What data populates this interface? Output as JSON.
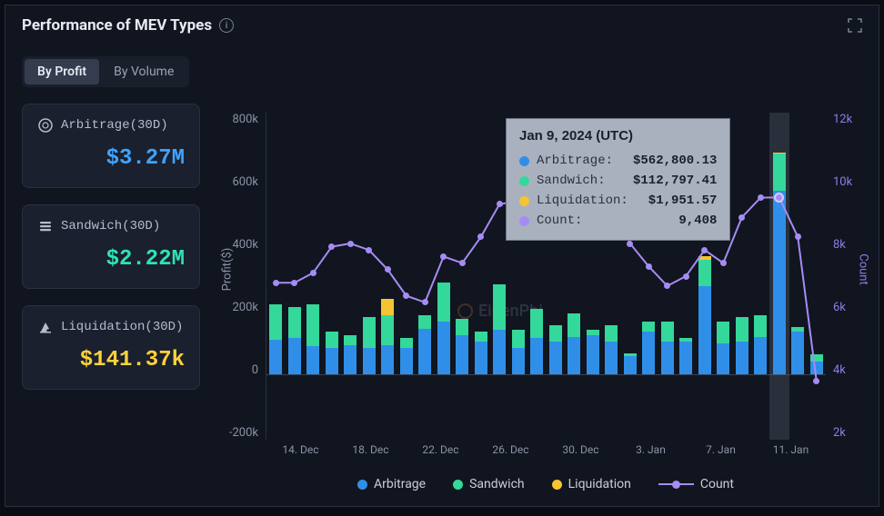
{
  "title": "Performance of MEV Types",
  "tabs": {
    "profit": "By Profit",
    "volume": "By Volume",
    "active": "profit"
  },
  "cards": [
    {
      "icon": "arbitrage",
      "label": "Arbitrage(30D)",
      "value": "$3.27M",
      "value_color": "#3fa3ff"
    },
    {
      "icon": "sandwich",
      "label": "Sandwich(30D)",
      "value": "$2.22M",
      "value_color": "#2fe3b0"
    },
    {
      "icon": "liquidation",
      "label": "Liquidation(30D)",
      "value": "$141.37k",
      "value_color": "#ffd23a"
    }
  ],
  "colors": {
    "arbitrage": "#2f8fe8",
    "sandwich": "#34d89a",
    "liquidation": "#f5c531",
    "count": "#a58cf5",
    "grid": "#2a3040",
    "bg": "#11151f",
    "text_muted": "#8a93a6"
  },
  "chart": {
    "y_left_label": "Profit($)",
    "y_right_label": "Count",
    "y_left": {
      "min": -200,
      "max": 800,
      "step": 200,
      "ticks": [
        "800k",
        "600k",
        "400k",
        "200k",
        "0",
        "-200k"
      ]
    },
    "y_right": {
      "min": 2,
      "max": 12,
      "step": 2,
      "ticks": [
        "12k",
        "10k",
        "8k",
        "6k",
        "4k",
        "2k"
      ]
    },
    "x_ticks": [
      "14. Dec",
      "18. Dec",
      "22. Dec",
      "26. Dec",
      "30. Dec",
      "3. Jan",
      "7. Jan",
      "11. Jan"
    ],
    "series": [
      {
        "arb": 105,
        "sand": 110,
        "liq": 0,
        "count": 6800
      },
      {
        "arb": 110,
        "sand": 95,
        "liq": 0,
        "count": 6800
      },
      {
        "arb": 85,
        "sand": 130,
        "liq": 0,
        "count": 7100
      },
      {
        "arb": 80,
        "sand": 50,
        "liq": 0,
        "count": 7900
      },
      {
        "arb": 90,
        "sand": 30,
        "liq": 0,
        "count": 8000
      },
      {
        "arb": 80,
        "sand": 95,
        "liq": 0,
        "count": 7800
      },
      {
        "arb": 90,
        "sand": 90,
        "liq": 50,
        "count": 7200
      },
      {
        "arb": 80,
        "sand": 30,
        "liq": 0,
        "count": 6400
      },
      {
        "arb": 140,
        "sand": 40,
        "liq": 0,
        "count": 6200
      },
      {
        "arb": 160,
        "sand": 120,
        "liq": 0,
        "count": 7600
      },
      {
        "arb": 120,
        "sand": 50,
        "liq": 0,
        "count": 7400
      },
      {
        "arb": 100,
        "sand": 30,
        "liq": 0,
        "count": 8200
      },
      {
        "arb": 135,
        "sand": 140,
        "liq": 0,
        "count": 9200
      },
      {
        "arb": 80,
        "sand": 55,
        "liq": 0,
        "count": 9300
      },
      {
        "arb": 110,
        "sand": 90,
        "liq": 0,
        "count": 8800
      },
      {
        "arb": 100,
        "sand": 50,
        "liq": 0,
        "count": 9600
      },
      {
        "arb": 115,
        "sand": 70,
        "liq": 0,
        "count": 9200
      },
      {
        "arb": 120,
        "sand": 15,
        "liq": 0,
        "count": 9700
      },
      {
        "arb": 100,
        "sand": 50,
        "liq": 0,
        "count": 9200
      },
      {
        "arb": 55,
        "sand": 10,
        "liq": 0,
        "count": 8000
      },
      {
        "arb": 130,
        "sand": 30,
        "liq": 0,
        "count": 7300
      },
      {
        "arb": 100,
        "sand": 60,
        "liq": 0,
        "count": 6700
      },
      {
        "arb": 100,
        "sand": 10,
        "liq": 0,
        "count": 7000
      },
      {
        "arb": 270,
        "sand": 80,
        "liq": 10,
        "count": 7800
      },
      {
        "arb": 95,
        "sand": 65,
        "liq": 0,
        "count": 7400
      },
      {
        "arb": 100,
        "sand": 75,
        "liq": 0,
        "count": 8800
      },
      {
        "arb": 115,
        "sand": 65,
        "liq": 0,
        "count": 9400
      },
      {
        "arb": 562,
        "sand": 113,
        "liq": 2,
        "count": 9408
      },
      {
        "arb": 130,
        "sand": 15,
        "liq": 0,
        "count": 8200
      },
      {
        "arb": 40,
        "sand": 20,
        "liq": 0,
        "count": 3800
      }
    ],
    "highlight_index": 27,
    "legend": {
      "arb": "Arbitrage",
      "sand": "Sandwich",
      "liq": "Liquidation",
      "count": "Count"
    },
    "watermark": "EigenPhi"
  },
  "tooltip": {
    "title": "Jan 9, 2024 (UTC)",
    "rows": [
      {
        "color": "#2f8fe8",
        "label": "Arbitrage:",
        "value": "$562,800.13"
      },
      {
        "color": "#34d89a",
        "label": "Sandwich:",
        "value": "$112,797.41"
      },
      {
        "color": "#f5c531",
        "label": "Liquidation:",
        "value": "$1,951.57"
      },
      {
        "color": "#a58cf5",
        "label": "Count:",
        "value": "9,408"
      }
    ]
  }
}
